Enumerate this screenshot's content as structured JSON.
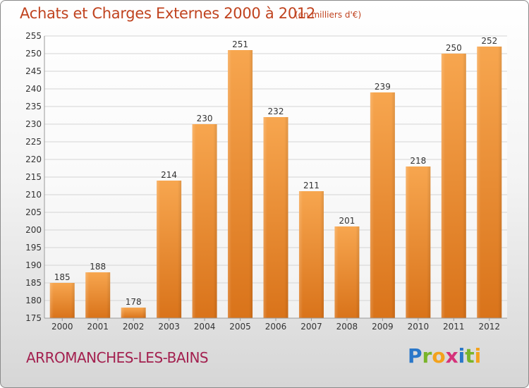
{
  "header": {
    "title": "Achats et Charges Externes 2000 à 2012",
    "subtitle": "(en milliers d'€)"
  },
  "footer": {
    "town": "ARROMANCHES-LES-BAINS",
    "logo": [
      "P",
      "r",
      "o",
      "x",
      "i",
      "t",
      "i"
    ]
  },
  "colors": {
    "bar_light": "#f7a64f",
    "bar_dark": "#d9731a",
    "title": "#c0431f",
    "town": "#a3204f"
  },
  "chart_data": {
    "type": "bar",
    "title": "Achats et Charges Externes 2000 à 2012",
    "subtitle": "(en milliers d'€)",
    "categories": [
      "2000",
      "2001",
      "2002",
      "2003",
      "2004",
      "2005",
      "2006",
      "2007",
      "2008",
      "2009",
      "2010",
      "2011",
      "2012"
    ],
    "values": [
      185,
      188,
      178,
      214,
      230,
      251,
      232,
      211,
      201,
      239,
      218,
      250,
      252
    ],
    "ylim": [
      175,
      255
    ],
    "yticks": [
      175,
      180,
      185,
      190,
      195,
      200,
      205,
      210,
      215,
      220,
      225,
      230,
      235,
      240,
      245,
      250,
      255
    ],
    "grid": true,
    "legend": "none"
  }
}
